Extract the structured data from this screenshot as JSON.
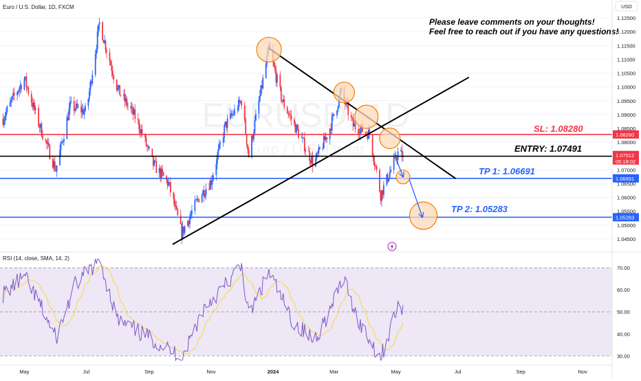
{
  "header": {
    "symbol_title": "Euro / U.S. Dollar, 1D, FXCM",
    "currency": "USD"
  },
  "watermark": {
    "symbol": "EURUSD, 1D",
    "name": "Euro / U.S. Dollar"
  },
  "comments": {
    "line1": "Please leave comments on your thoughts!",
    "line2": "Feel free to reach out if you have any questions!"
  },
  "levels": {
    "sl": {
      "label": "SL: 1.08280",
      "value": 1.0828,
      "tag": "1.08280",
      "color": "#f23645"
    },
    "entry": {
      "label": "ENTRY: 1.07491",
      "value": 1.07491,
      "tag": "1.07491",
      "color": "#000000"
    },
    "tp1": {
      "label": "TP 1: 1.06691",
      "value": 1.06691,
      "tag": "1.06691",
      "color": "#2962ff"
    },
    "tp2": {
      "label": "TP 2: 1.05283",
      "value": 1.05283,
      "tag": "1.05283",
      "color": "#2962ff"
    }
  },
  "last_price": {
    "value": 1.07512,
    "tag": "1.07512",
    "countdown": "05:18:02",
    "color": "#f23645"
  },
  "colors": {
    "up": "#2962ff",
    "down": "#f23645",
    "rsi_line": "#7e57c2",
    "rsi_ma": "#fdd835",
    "rsi_band": "#ede7f6",
    "circle_fill": "#fcd9b8",
    "circle_stroke": "#f57c00",
    "trend_line": "#000000"
  },
  "price_axis": {
    "ticks": [
      "1.12500",
      "1.12000",
      "1.11500",
      "1.11000",
      "1.10500",
      "1.10000",
      "1.09500",
      "1.09000",
      "1.08500",
      "1.08000",
      "1.07500",
      "1.07000",
      "1.06500",
      "1.06000",
      "1.05500",
      "1.05000",
      "1.04500"
    ]
  },
  "rsi": {
    "label": "RSI (14, close, SMA, 14, 2)",
    "ticks": [
      "70.00",
      "60.00",
      "50.00",
      "40.00",
      "30.00"
    ]
  },
  "time_axis": {
    "labels": [
      "May",
      "Jul",
      "Sep",
      "Nov",
      "2024",
      "Mar",
      "May",
      "Jul",
      "Sep",
      "Nov"
    ],
    "bold_label": "2024"
  },
  "icons": {
    "alert": "lightning-alert-icon"
  },
  "chart_data": {
    "type": "candlestick",
    "symbol": "Euro / U.S. Dollar",
    "interval": "1D",
    "ylim": [
      1.043,
      1.127
    ],
    "x_labels": [
      "May",
      "Jul",
      "Sep",
      "Nov",
      "2024",
      "Mar",
      "May",
      "Jul",
      "Sep",
      "Nov"
    ],
    "close_path_approx": [
      {
        "date": "2023-04-10",
        "close": 1.0885
      },
      {
        "date": "2023-04-20",
        "close": 1.096
      },
      {
        "date": "2023-05-01",
        "close": 1.103
      },
      {
        "date": "2023-05-15",
        "close": 1.087
      },
      {
        "date": "2023-06-01",
        "close": 1.07
      },
      {
        "date": "2023-06-15",
        "close": 1.093
      },
      {
        "date": "2023-07-01",
        "close": 1.091
      },
      {
        "date": "2023-07-14",
        "close": 1.123
      },
      {
        "date": "2023-08-01",
        "close": 1.099
      },
      {
        "date": "2023-08-20",
        "close": 1.088
      },
      {
        "date": "2023-09-05",
        "close": 1.072
      },
      {
        "date": "2023-09-20",
        "close": 1.065
      },
      {
        "date": "2023-10-03",
        "close": 1.047
      },
      {
        "date": "2023-10-20",
        "close": 1.06
      },
      {
        "date": "2023-11-01",
        "close": 1.066
      },
      {
        "date": "2023-11-15",
        "close": 1.086
      },
      {
        "date": "2023-12-01",
        "close": 1.095
      },
      {
        "date": "2023-12-08",
        "close": 1.075
      },
      {
        "date": "2023-12-28",
        "close": 1.114
      },
      {
        "date": "2024-01-10",
        "close": 1.095
      },
      {
        "date": "2024-01-25",
        "close": 1.084
      },
      {
        "date": "2024-02-10",
        "close": 1.072
      },
      {
        "date": "2024-02-25",
        "close": 1.084
      },
      {
        "date": "2024-03-08",
        "close": 1.098
      },
      {
        "date": "2024-03-20",
        "close": 1.086
      },
      {
        "date": "2024-04-05",
        "close": 1.083
      },
      {
        "date": "2024-04-16",
        "close": 1.061
      },
      {
        "date": "2024-04-26",
        "close": 1.07
      },
      {
        "date": "2024-05-03",
        "close": 1.076
      },
      {
        "date": "2024-05-08",
        "close": 1.07512
      }
    ],
    "horizontal_levels": [
      {
        "name": "SL",
        "value": 1.0828
      },
      {
        "name": "ENTRY",
        "value": 1.07491
      },
      {
        "name": "TP 1",
        "value": 1.06691
      },
      {
        "name": "TP 2",
        "value": 1.05283
      }
    ],
    "rsi": {
      "name": "RSI (14, close, SMA, 14, 2)",
      "ylim": [
        27,
        75
      ],
      "band": [
        30,
        70
      ],
      "mid": 50,
      "values_approx": [
        {
          "date": "2023-04-10",
          "value": 58
        },
        {
          "date": "2023-05-01",
          "value": 66
        },
        {
          "date": "2023-05-20",
          "value": 50
        },
        {
          "date": "2023-06-01",
          "value": 38
        },
        {
          "date": "2023-06-20",
          "value": 62
        },
        {
          "date": "2023-07-14",
          "value": 74
        },
        {
          "date": "2023-08-01",
          "value": 46
        },
        {
          "date": "2023-08-25",
          "value": 40
        },
        {
          "date": "2023-09-10",
          "value": 36
        },
        {
          "date": "2023-10-03",
          "value": 29
        },
        {
          "date": "2023-10-25",
          "value": 52
        },
        {
          "date": "2023-11-15",
          "value": 62
        },
        {
          "date": "2023-12-01",
          "value": 71
        },
        {
          "date": "2023-12-08",
          "value": 48
        },
        {
          "date": "2023-12-28",
          "value": 68
        },
        {
          "date": "2024-01-20",
          "value": 46
        },
        {
          "date": "2024-02-10",
          "value": 37
        },
        {
          "date": "2024-02-28",
          "value": 52
        },
        {
          "date": "2024-03-10",
          "value": 66
        },
        {
          "date": "2024-03-25",
          "value": 46
        },
        {
          "date": "2024-04-16",
          "value": 29
        },
        {
          "date": "2024-05-01",
          "value": 50
        },
        {
          "date": "2024-05-08",
          "value": 53
        }
      ]
    }
  }
}
